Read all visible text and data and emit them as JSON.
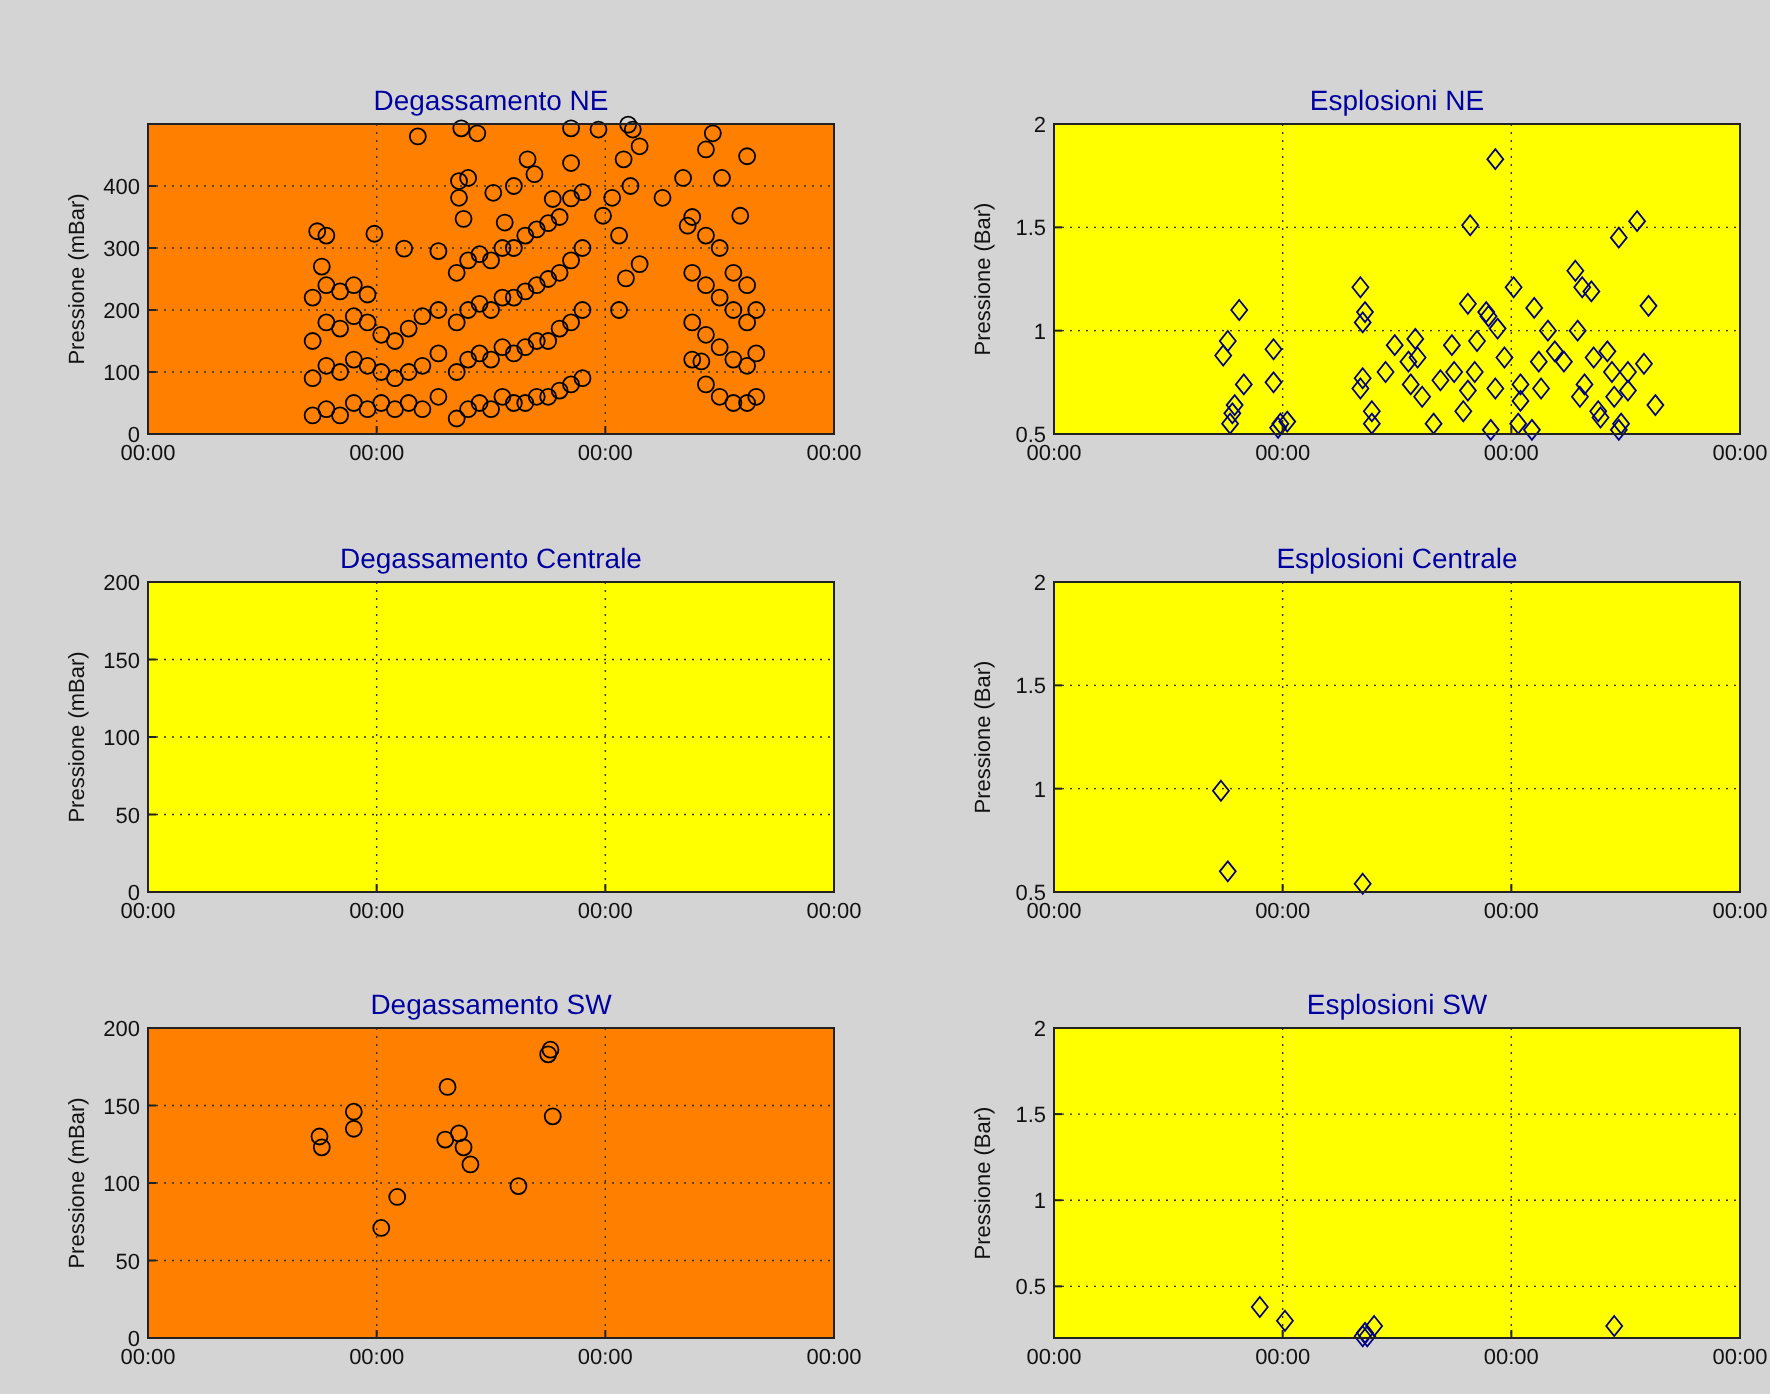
{
  "chart_data": [
    {
      "type": "scatter",
      "title": "Degassamento NE",
      "ylabel": "Pressione (mBar)",
      "color": "#000000",
      "marker": "circle",
      "grid": true,
      "xlim": [
        0,
        3
      ],
      "ylim": [
        0,
        500
      ],
      "xticks": [
        {
          "value": 0,
          "label": "00:00"
        },
        {
          "value": 1,
          "label": "00:00"
        },
        {
          "value": 2,
          "label": "00:00"
        },
        {
          "value": 3,
          "label": "00:00"
        }
      ],
      "yticks": [
        0,
        100,
        200,
        300,
        400
      ],
      "x": [
        0.74,
        0.78,
        0.76,
        0.99,
        1.18,
        1.12,
        1.27,
        1.37,
        1.44,
        1.36,
        1.4,
        1.36,
        1.38,
        1.51,
        1.6,
        1.56,
        1.66,
        1.69,
        1.85,
        1.85,
        1.77,
        1.97,
        1.99,
        2.03,
        2.1,
        2.08,
        2.12,
        2.15,
        2.11,
        2.06,
        2.15,
        2.09,
        2.06,
        2.25,
        2.34,
        2.47,
        2.44,
        2.51,
        2.36,
        2.59,
        2.42,
        2.62,
        0.72,
        0.72,
        0.72,
        0.72,
        0.78,
        0.78,
        0.78,
        0.78,
        0.84,
        0.84,
        0.84,
        0.84,
        0.9,
        0.9,
        0.9,
        0.9,
        0.96,
        0.96,
        0.96,
        0.96,
        1.02,
        1.02,
        1.02,
        1.08,
        1.08,
        1.08,
        1.14,
        1.14,
        1.14,
        1.2,
        1.2,
        1.2,
        1.27,
        1.27,
        1.27,
        1.35,
        1.35,
        1.35,
        1.35,
        1.4,
        1.4,
        1.4,
        1.4,
        1.45,
        1.45,
        1.45,
        1.45,
        1.5,
        1.5,
        1.5,
        1.5,
        1.55,
        1.55,
        1.55,
        1.55,
        1.6,
        1.6,
        1.6,
        1.6,
        1.65,
        1.65,
        1.65,
        1.65,
        1.7,
        1.7,
        1.7,
        1.7,
        1.75,
        1.75,
        1.75,
        1.75,
        1.8,
        1.8,
        1.8,
        1.8,
        1.85,
        1.85,
        1.85,
        1.85,
        1.9,
        1.9,
        1.9,
        1.9,
        2.38,
        2.38,
        2.38,
        2.38,
        2.44,
        2.44,
        2.44,
        2.44,
        2.5,
        2.5,
        2.5,
        2.5,
        2.56,
        2.56,
        2.56,
        2.56,
        2.62,
        2.62,
        2.62,
        2.62,
        2.66,
        2.66,
        2.66
      ],
      "values": [
        327,
        320,
        270,
        323,
        480,
        299,
        295,
        493,
        485,
        408,
        413,
        381,
        347,
        389,
        400,
        341,
        443,
        419,
        493,
        437,
        379,
        491,
        352,
        381,
        499,
        443,
        491,
        464,
        400,
        320,
        274,
        251,
        200,
        381,
        413,
        485,
        459,
        413,
        336,
        352,
        117,
        448,
        30,
        90,
        150,
        220,
        40,
        110,
        180,
        240,
        30,
        100,
        170,
        230,
        50,
        120,
        190,
        240,
        40,
        110,
        180,
        225,
        50,
        100,
        160,
        40,
        90,
        150,
        50,
        100,
        170,
        40,
        110,
        190,
        60,
        130,
        200,
        25,
        100,
        180,
        260,
        40,
        120,
        200,
        280,
        50,
        130,
        210,
        290,
        40,
        120,
        200,
        280,
        60,
        140,
        220,
        300,
        50,
        130,
        220,
        300,
        50,
        140,
        230,
        320,
        60,
        150,
        240,
        330,
        60,
        150,
        250,
        340,
        70,
        170,
        260,
        350,
        80,
        180,
        280,
        380,
        90,
        200,
        300,
        390,
        120,
        180,
        260,
        350,
        80,
        160,
        240,
        320,
        60,
        140,
        220,
        300,
        50,
        120,
        200,
        260,
        50,
        110,
        180,
        240,
        60,
        130,
        200
      ]
    },
    {
      "type": "scatter",
      "title": "Esplosioni NE",
      "ylabel": "Pressione (Bar)",
      "color": "#000080",
      "marker": "diamond",
      "grid": true,
      "xlim": [
        0,
        3
      ],
      "ylim": [
        0.5,
        2
      ],
      "xticks": [
        {
          "value": 0,
          "label": "00:00"
        },
        {
          "value": 1,
          "label": "00:00"
        },
        {
          "value": 2,
          "label": "00:00"
        },
        {
          "value": 3,
          "label": "00:00"
        }
      ],
      "yticks": [
        0.5,
        1,
        1.5,
        2
      ],
      "x": [
        0.74,
        0.76,
        0.81,
        0.83,
        0.79,
        0.78,
        0.77,
        0.96,
        0.96,
        0.98,
        0.99,
        1.02,
        1.34,
        1.36,
        1.35,
        1.35,
        1.34,
        1.39,
        1.39,
        1.45,
        1.49,
        1.55,
        1.58,
        1.59,
        1.56,
        1.61,
        1.66,
        1.69,
        1.74,
        1.75,
        1.79,
        1.81,
        1.82,
        1.84,
        1.85,
        1.81,
        1.89,
        1.9,
        1.91,
        1.93,
        1.94,
        1.93,
        1.97,
        2.01,
        2.03,
        2.04,
        2.04,
        2.09,
        2.1,
        2.12,
        2.13,
        2.16,
        2.19,
        2.23,
        2.28,
        2.29,
        2.31,
        2.32,
        2.35,
        2.3,
        2.36,
        2.38,
        2.39,
        2.42,
        2.44,
        2.45,
        2.47,
        2.48,
        2.51,
        2.47,
        2.55,
        2.58,
        2.6,
        2.63,
        2.51
      ],
      "values": [
        0.88,
        0.95,
        1.1,
        0.74,
        0.64,
        0.6,
        0.55,
        0.91,
        0.75,
        0.53,
        0.55,
        0.56,
        1.21,
        1.09,
        1.04,
        0.77,
        0.72,
        0.61,
        0.55,
        0.8,
        0.93,
        0.85,
        0.96,
        0.87,
        0.74,
        0.68,
        0.55,
        0.76,
        0.93,
        0.8,
        0.61,
        1.13,
        1.51,
        0.8,
        0.95,
        0.71,
        1.09,
        1.07,
        0.52,
        1.83,
        1.01,
        0.72,
        0.87,
        1.21,
        0.55,
        0.74,
        0.66,
        0.52,
        1.11,
        0.85,
        0.72,
        1.0,
        0.9,
        0.85,
        1.29,
        1.0,
        1.21,
        0.74,
        1.19,
        0.68,
        0.87,
        0.61,
        0.58,
        0.9,
        0.8,
        0.68,
        0.52,
        0.55,
        0.71,
        1.45,
        1.53,
        0.84,
        1.12,
        0.64,
        0.8
      ]
    },
    {
      "type": "scatter",
      "title": "Degassamento Centrale",
      "ylabel": "Pressione (mBar)",
      "grid": true,
      "xlim": [
        0,
        3
      ],
      "ylim": [
        0,
        200
      ],
      "xticks": [
        {
          "value": 0,
          "label": "00:00"
        },
        {
          "value": 1,
          "label": "00:00"
        },
        {
          "value": 2,
          "label": "00:00"
        },
        {
          "value": 3,
          "label": "00:00"
        }
      ],
      "yticks": [
        0,
        50,
        100,
        150,
        200
      ]
    },
    {
      "type": "scatter",
      "title": "Esplosioni Centrale",
      "ylabel": "Pressione (Bar)",
      "color": "#000080",
      "marker": "diamond",
      "grid": true,
      "xlim": [
        0,
        3
      ],
      "ylim": [
        0.5,
        2
      ],
      "xticks": [
        {
          "value": 0,
          "label": "00:00"
        },
        {
          "value": 1,
          "label": "00:00"
        },
        {
          "value": 2,
          "label": "00:00"
        },
        {
          "value": 3,
          "label": "00:00"
        }
      ],
      "yticks": [
        0.5,
        1,
        1.5,
        2
      ],
      "x": [
        0.73,
        0.76,
        1.35
      ],
      "values": [
        0.99,
        0.6,
        0.54
      ]
    },
    {
      "type": "scatter",
      "title": "Degassamento SW",
      "ylabel": "Pressione (mBar)",
      "color": "#000000",
      "marker": "circle",
      "grid": true,
      "xlim": [
        0,
        3
      ],
      "ylim": [
        0,
        200
      ],
      "xticks": [
        {
          "value": 0,
          "label": "00:00"
        },
        {
          "value": 1,
          "label": "00:00"
        },
        {
          "value": 2,
          "label": "00:00"
        },
        {
          "value": 3,
          "label": "00:00"
        }
      ],
      "yticks": [
        0,
        50,
        100,
        150,
        200
      ],
      "x": [
        0.75,
        0.76,
        0.9,
        0.9,
        1.02,
        1.09,
        1.31,
        1.3,
        1.36,
        1.38,
        1.41,
        1.62,
        1.76,
        1.75,
        1.77
      ],
      "values": [
        130,
        123,
        146,
        135,
        71,
        91,
        162,
        128,
        132,
        123,
        112,
        98,
        186,
        183,
        143
      ]
    },
    {
      "type": "scatter",
      "title": "Esplosioni SW",
      "ylabel": "Pressione (Bar)",
      "color": "#000080",
      "marker": "diamond",
      "grid": true,
      "xlim": [
        0,
        3
      ],
      "ylim": [
        0.2,
        2
      ],
      "xticks": [
        {
          "value": 0,
          "label": "00:00"
        },
        {
          "value": 1,
          "label": "00:00"
        },
        {
          "value": 2,
          "label": "00:00"
        },
        {
          "value": 3,
          "label": "00:00"
        }
      ],
      "yticks": [
        0.5,
        1,
        1.5,
        2
      ],
      "x": [
        0.9,
        1.01,
        1.36,
        1.35,
        1.37,
        1.4,
        2.45
      ],
      "values": [
        0.38,
        0.3,
        0.23,
        0.21,
        0.21,
        0.27,
        0.27
      ]
    }
  ]
}
